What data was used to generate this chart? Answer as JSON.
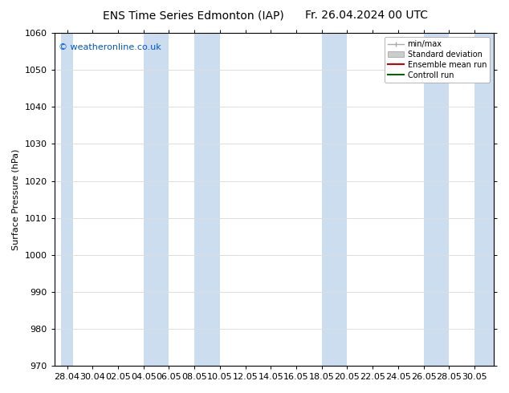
{
  "title_left": "ENS Time Series Edmonton (IAP)",
  "title_right": "Fr. 26.04.2024 00 UTC",
  "ylabel": "Surface Pressure (hPa)",
  "ylim": [
    970,
    1060
  ],
  "yticks": [
    970,
    980,
    990,
    1000,
    1010,
    1020,
    1030,
    1040,
    1050,
    1060
  ],
  "xtick_labels": [
    "28.04",
    "30.04",
    "02.05",
    "04.05",
    "06.05",
    "08.05",
    "10.05",
    "12.05",
    "14.05",
    "16.05",
    "18.05",
    "20.05",
    "22.05",
    "24.05",
    "26.05",
    "28.05",
    "30.05"
  ],
  "background_color": "#ffffff",
  "plot_bg_color": "#ffffff",
  "shaded_band_color": "#ccddf0",
  "copyright_text": "© weatheronline.co.uk",
  "copyright_color": "#0055cc",
  "legend_items": [
    "min/max",
    "Standard deviation",
    "Ensemble mean run",
    "Controll run"
  ],
  "legend_line_colors": [
    "#aaaaaa",
    "#bbbbbb",
    "#cc0000",
    "#006600"
  ],
  "grid_color": "#dddddd",
  "title_fontsize": 10,
  "label_fontsize": 8,
  "tick_fontsize": 8
}
